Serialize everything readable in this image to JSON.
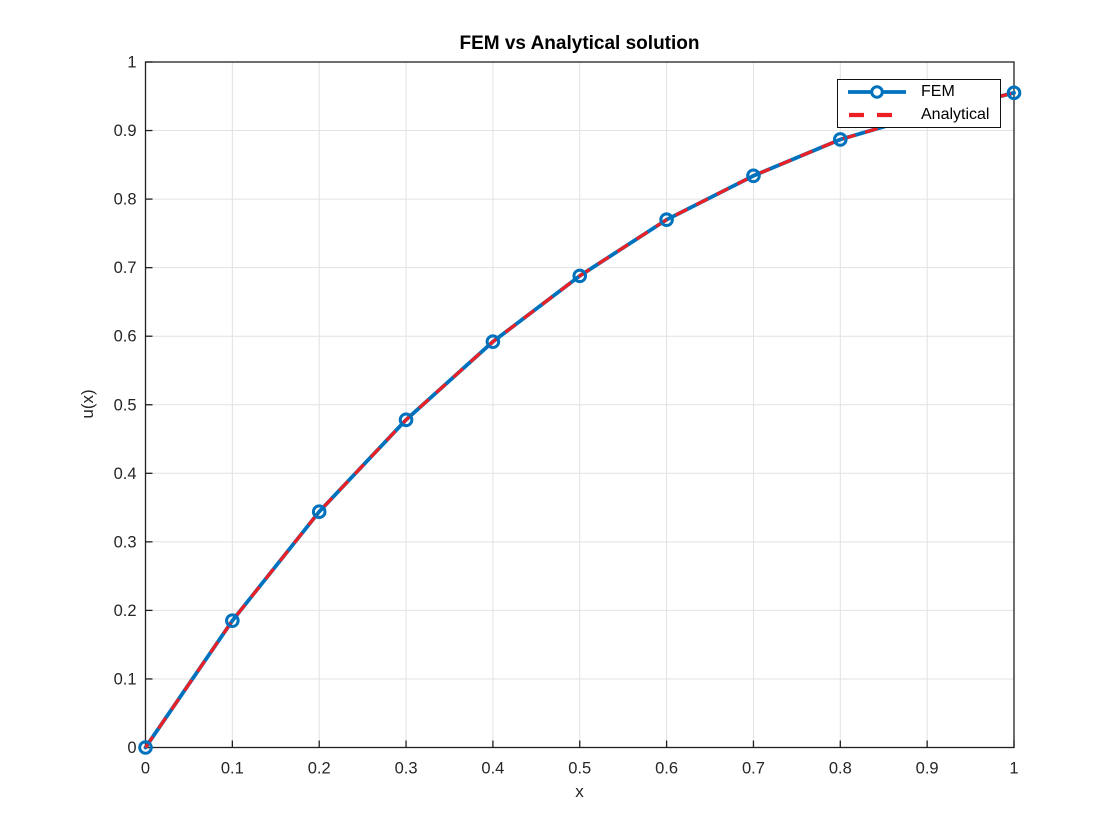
{
  "figure": {
    "background": "#ffffff"
  },
  "chart_data": {
    "type": "line",
    "title": "FEM vs Analytical solution",
    "xlabel": "x",
    "ylabel": "u(x)",
    "xlim": [
      0,
      1
    ],
    "ylim": [
      0,
      1
    ],
    "grid": true,
    "legend_position": "top-right",
    "xticks": [
      0,
      0.1,
      0.2,
      0.3,
      0.4,
      0.5,
      0.6,
      0.7,
      0.8,
      0.9,
      1
    ],
    "xtick_labels": [
      "0",
      "0.1",
      "0.2",
      "0.3",
      "0.4",
      "0.5",
      "0.6",
      "0.7",
      "0.8",
      "0.9",
      "1"
    ],
    "yticks": [
      0,
      0.1,
      0.2,
      0.3,
      0.4,
      0.5,
      0.6,
      0.7,
      0.8,
      0.9,
      1
    ],
    "ytick_labels": [
      "0",
      "0.1",
      "0.2",
      "0.3",
      "0.4",
      "0.5",
      "0.6",
      "0.7",
      "0.8",
      "0.9",
      "1"
    ],
    "x": [
      0,
      0.1,
      0.2,
      0.3,
      0.4,
      0.5,
      0.6,
      0.7,
      0.8,
      0.9,
      1.0
    ],
    "series": [
      {
        "name": "FEM",
        "color": "#0072BD",
        "style": "solid",
        "marker": "circle",
        "values": [
          0,
          0.185,
          0.344,
          0.478,
          0.592,
          0.688,
          0.77,
          0.834,
          0.887,
          0.924,
          0.955
        ]
      },
      {
        "name": "Analytical",
        "color": "#EC2024",
        "style": "dashed",
        "marker": "none",
        "values": [
          0,
          0.185,
          0.344,
          0.478,
          0.592,
          0.688,
          0.77,
          0.834,
          0.887,
          0.924,
          0.955
        ]
      }
    ],
    "colors": {
      "grid": "#e2e2e2",
      "axis": "#1f1f1f",
      "tick_label": "#262626"
    }
  }
}
